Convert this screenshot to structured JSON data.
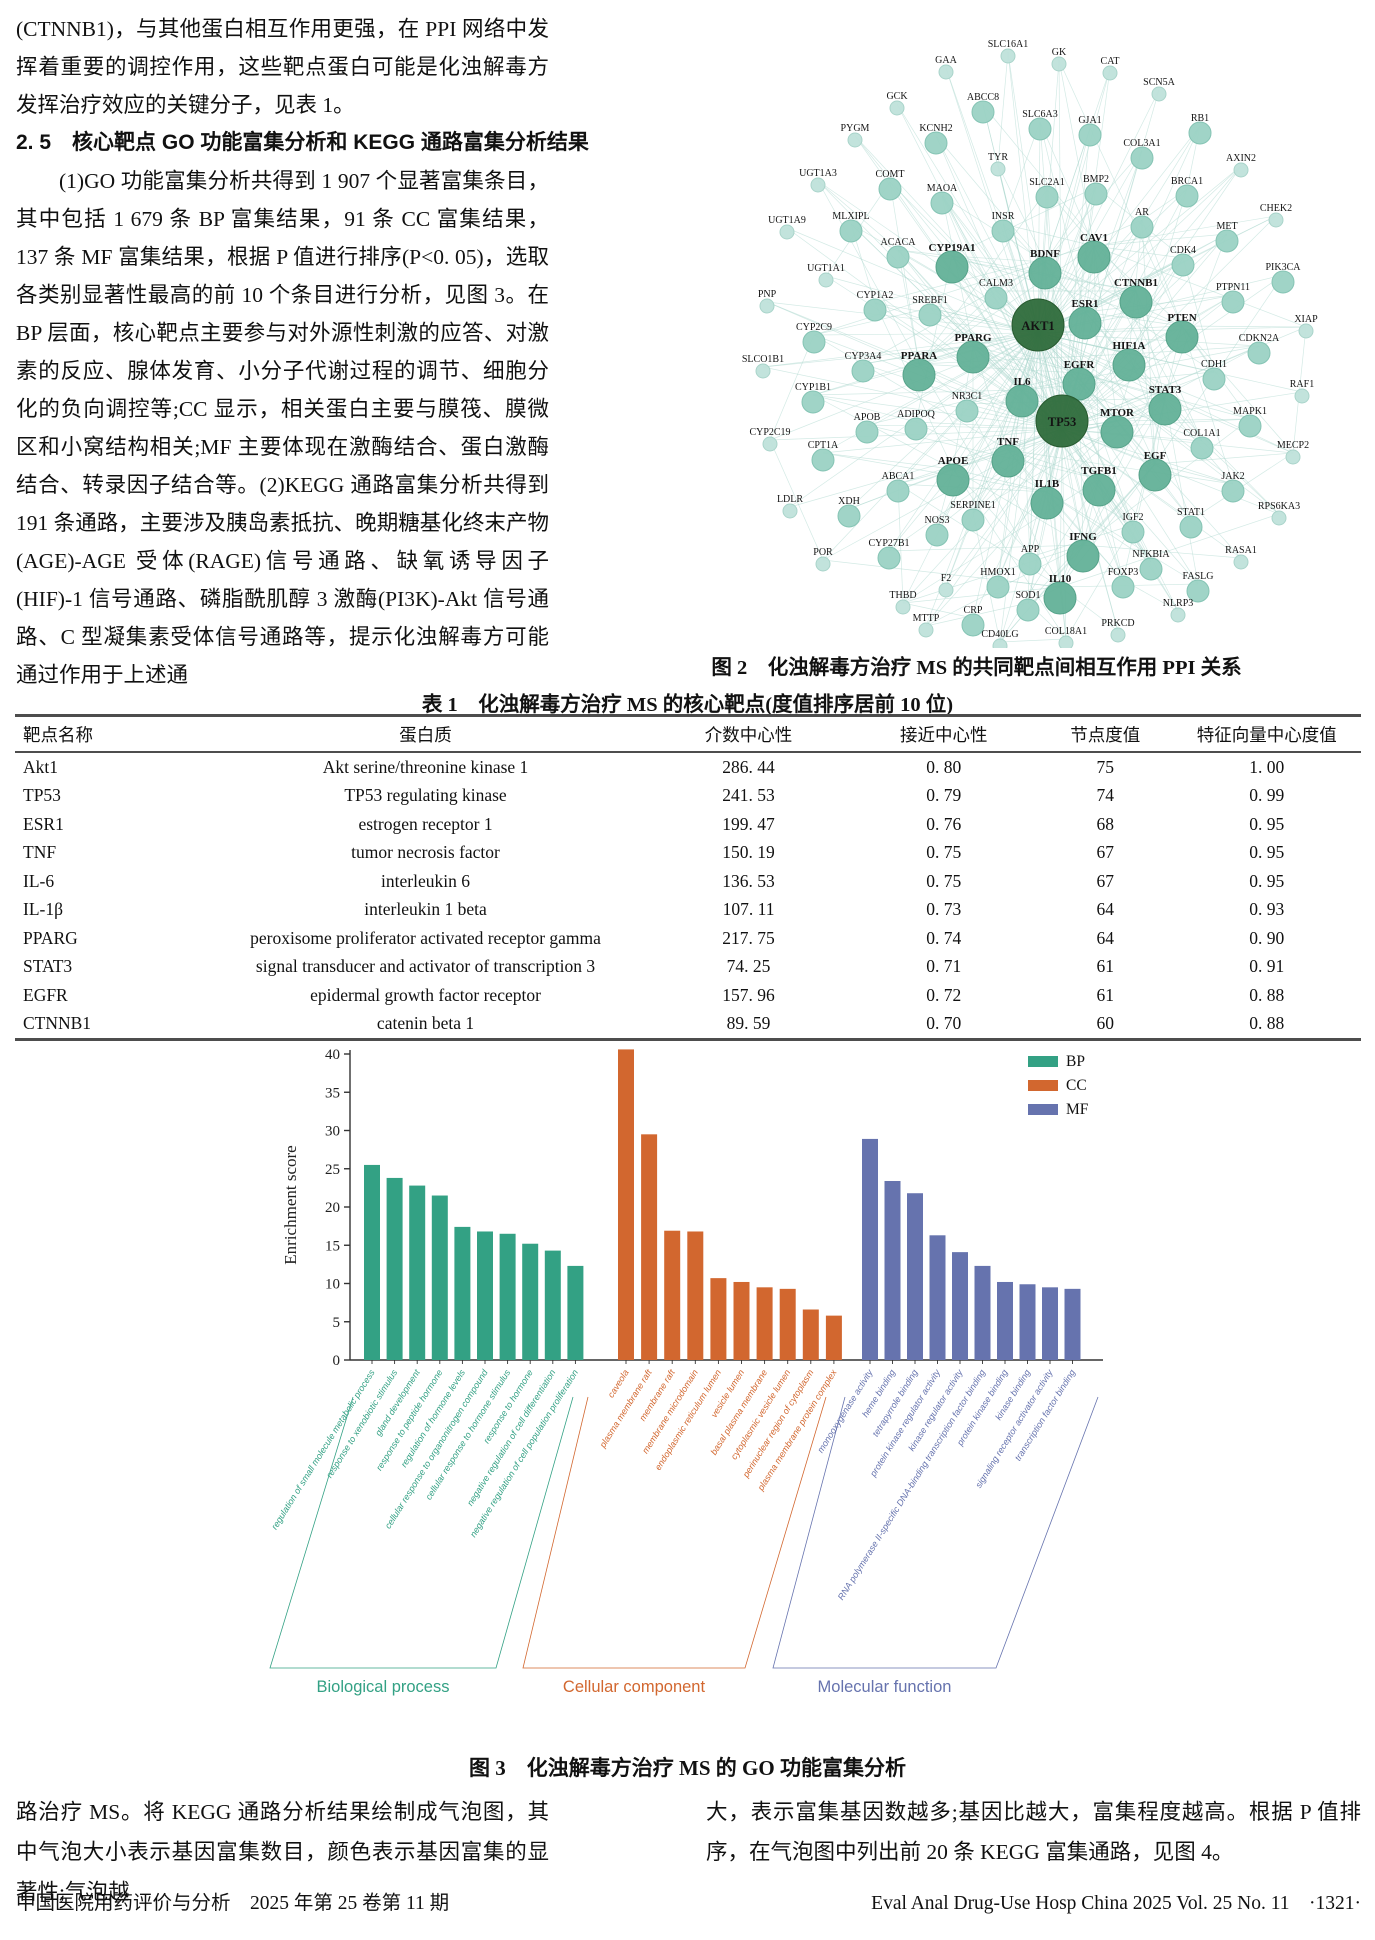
{
  "left_column": {
    "para1": "(CTNNB1)，与其他蛋白相互作用更强，在 PPI 网络中发挥着重要的调控作用，这些靶点蛋白可能是化浊解毒方发挥治疗效应的关键分子，见表 1。",
    "heading": "2. 5　核心靶点 GO 功能富集分析和 KEGG 通路富集分析结果",
    "para2": "(1)GO 功能富集分析共得到 1 907 个显著富集条目，其中包括 1 679 条 BP 富集结果，91 条 CC 富集结果，137 条 MF 富集结果，根据 P 值进行排序(P<0. 05)，选取各类别显著性最高的前 10 个条目进行分析，见图 3。在 BP 层面，核心靶点主要参与对外源性刺激的应答、对激素的反应、腺体发育、小分子代谢过程的调节、细胞分化的负向调控等;CC 显示，相关蛋白主要与膜筏、膜微区和小窝结构相关;MF 主要体现在激酶结合、蛋白激酶结合、转录因子结合等。(2)KEGG 通路富集分析共得到 191 条通路，主要涉及胰岛素抵抗、晚期糖基化终末产物(AGE)-AGE 受体(RAGE)信号通路、缺氧诱导因子(HIF)-1 信号通路、磷脂酰肌醇 3 激酶(PI3K)-Akt 信号通路、C 型凝集素受体信号通路等，提示化浊解毒方可能通过作用于上述通"
  },
  "figure2": {
    "caption": "图 2　化浊解毒方治疗 MS 的共同靶点间相互作用 PPI 关系",
    "network": {
      "hubs": [
        "AKT1",
        "TP53"
      ],
      "colors": {
        "edge": "#aed8cf",
        "tier0": "#bfe2da",
        "tier1": "#9bd2c4",
        "tier2": "#63b198",
        "hub": "#2e6b3b"
      },
      "nodes": [
        [
          "GAA",
          368,
          54,
          0
        ],
        [
          "SLC16A1",
          430,
          38,
          0
        ],
        [
          "GK",
          481,
          46,
          0
        ],
        [
          "CAT",
          532,
          55,
          0
        ],
        [
          "SCN5A",
          581,
          76,
          0
        ],
        [
          "GCK",
          319,
          90,
          0
        ],
        [
          "ABCC8",
          405,
          91,
          1
        ],
        [
          "SLC6A3",
          462,
          108,
          1
        ],
        [
          "RB1",
          622,
          112,
          1
        ],
        [
          "PYGM",
          277,
          122,
          0
        ],
        [
          "KCNH2",
          358,
          122,
          1
        ],
        [
          "GJA1",
          512,
          114,
          1
        ],
        [
          "TYR",
          420,
          151,
          0
        ],
        [
          "COL3A1",
          564,
          137,
          1
        ],
        [
          "AXIN2",
          663,
          152,
          0
        ],
        [
          "UGT1A3",
          240,
          167,
          0
        ],
        [
          "COMT",
          312,
          168,
          1
        ],
        [
          "MAOA",
          364,
          182,
          1
        ],
        [
          "SLC2A1",
          469,
          176,
          1
        ],
        [
          "BMP2",
          518,
          173,
          1
        ],
        [
          "BRCA1",
          609,
          175,
          1
        ],
        [
          "CHEK2",
          698,
          202,
          0
        ],
        [
          "UGT1A9",
          209,
          214,
          0
        ],
        [
          "MLXIPL",
          273,
          210,
          1
        ],
        [
          "INSR",
          425,
          210,
          1
        ],
        [
          "AR",
          564,
          206,
          1
        ],
        [
          "MET",
          649,
          220,
          1
        ],
        [
          "ACACA",
          320,
          236,
          1
        ],
        [
          "CYP19A1",
          374,
          242,
          2
        ],
        [
          "CAV1",
          516,
          232,
          2
        ],
        [
          "BDNF",
          467,
          248,
          2
        ],
        [
          "CDK4",
          605,
          244,
          1
        ],
        [
          "PIK3CA",
          705,
          261,
          1
        ],
        [
          "UGT1A1",
          248,
          262,
          0
        ],
        [
          "CALM3",
          418,
          277,
          1
        ],
        [
          "CTNNB1",
          558,
          277,
          2
        ],
        [
          "PTPN11",
          655,
          281,
          1
        ],
        [
          "PNP",
          189,
          288,
          0
        ],
        [
          "CYP1A2",
          297,
          289,
          1
        ],
        [
          "SREBF1",
          352,
          294,
          1
        ],
        [
          "ESR1",
          507,
          298,
          2
        ],
        [
          "PTEN",
          604,
          312,
          2
        ],
        [
          "XIAP",
          728,
          313,
          0
        ],
        [
          "CYP2C9",
          236,
          321,
          1
        ],
        [
          "AKT1",
          460,
          319,
          3
        ],
        [
          "CDKN2A",
          681,
          332,
          1
        ],
        [
          "PPARG",
          395,
          332,
          2
        ],
        [
          "HIF1A",
          551,
          340,
          2
        ],
        [
          "SLCO1B1",
          185,
          353,
          0
        ],
        [
          "CYP3A4",
          285,
          350,
          1
        ],
        [
          "PPARA",
          341,
          350,
          2
        ],
        [
          "EGFR",
          501,
          359,
          2
        ],
        [
          "CDH1",
          636,
          358,
          1
        ],
        [
          "RAF1",
          724,
          378,
          0
        ],
        [
          "CYP1B1",
          235,
          381,
          1
        ],
        [
          "IL6",
          444,
          376,
          2
        ],
        [
          "STAT3",
          587,
          384,
          2
        ],
        [
          "MAPK1",
          672,
          405,
          1
        ],
        [
          "NR3C1",
          389,
          390,
          1
        ],
        [
          "TP53",
          484,
          415,
          3
        ],
        [
          "MTOR",
          539,
          407,
          2
        ],
        [
          "COL1A1",
          624,
          427,
          1
        ],
        [
          "CYP2C19",
          192,
          426,
          0
        ],
        [
          "APOB",
          289,
          411,
          1
        ],
        [
          "ADIPOQ",
          338,
          408,
          1
        ],
        [
          "TNF",
          430,
          436,
          2
        ],
        [
          "MECP2",
          715,
          439,
          0
        ],
        [
          "CPT1A",
          245,
          439,
          1
        ],
        [
          "APOE",
          375,
          455,
          2
        ],
        [
          "EGF",
          577,
          450,
          2
        ],
        [
          "TGFB1",
          521,
          465,
          2
        ],
        [
          "JAK2",
          655,
          470,
          1
        ],
        [
          "ABCA1",
          320,
          470,
          1
        ],
        [
          "IL1B",
          469,
          478,
          2
        ],
        [
          "LDLR",
          212,
          493,
          0
        ],
        [
          "XDH",
          271,
          495,
          1
        ],
        [
          "SERPINE1",
          395,
          499,
          1
        ],
        [
          "RPS6KA3",
          701,
          500,
          0
        ],
        [
          "NOS3",
          359,
          514,
          1
        ],
        [
          "IGF2",
          555,
          511,
          1
        ],
        [
          "STAT1",
          613,
          506,
          1
        ],
        [
          "POR",
          245,
          546,
          0
        ],
        [
          "CYP27B1",
          311,
          537,
          1
        ],
        [
          "APP",
          452,
          543,
          1
        ],
        [
          "IFNG",
          505,
          531,
          2
        ],
        [
          "NFKBIA",
          573,
          548,
          1
        ],
        [
          "RASA1",
          663,
          544,
          0
        ],
        [
          "HMOX1",
          420,
          566,
          1
        ],
        [
          "F2",
          368,
          572,
          0
        ],
        [
          "IL10",
          482,
          573,
          2
        ],
        [
          "FOXP3",
          545,
          566,
          1
        ],
        [
          "FASLG",
          620,
          570,
          1
        ],
        [
          "THBD",
          325,
          589,
          0
        ],
        [
          "SOD1",
          450,
          589,
          1
        ],
        [
          "CRP",
          395,
          604,
          1
        ],
        [
          "MTTP",
          348,
          612,
          0
        ],
        [
          "NLRP3",
          600,
          597,
          0
        ],
        [
          "PRKCD",
          540,
          617,
          0
        ],
        [
          "CD40LG",
          422,
          628,
          0
        ],
        [
          "COL18A1",
          488,
          625,
          0
        ]
      ]
    }
  },
  "table1": {
    "title": "表 1　化浊解毒方治疗 MS 的核心靶点(度值排序居前 10 位)",
    "headers": [
      "靶点名称",
      "蛋白质",
      "介数中心性",
      "接近中心性",
      "节点度值",
      "特征向量中心度值"
    ],
    "rows": [
      [
        "Akt1",
        "Akt serine/threonine kinase 1",
        "286. 44",
        "0. 80",
        "75",
        "1. 00"
      ],
      [
        "TP53",
        "TP53 regulating kinase",
        "241. 53",
        "0. 79",
        "74",
        "0. 99"
      ],
      [
        "ESR1",
        "estrogen receptor 1",
        "199. 47",
        "0. 76",
        "68",
        "0. 95"
      ],
      [
        "TNF",
        "tumor necrosis factor",
        "150. 19",
        "0. 75",
        "67",
        "0. 95"
      ],
      [
        "IL-6",
        "interleukin 6",
        "136. 53",
        "0. 75",
        "67",
        "0. 95"
      ],
      [
        "IL-1β",
        "interleukin 1 beta",
        "107. 11",
        "0. 73",
        "64",
        "0. 93"
      ],
      [
        "PPARG",
        "peroxisome proliferator activated receptor gamma",
        "217. 75",
        "0. 74",
        "64",
        "0. 90"
      ],
      [
        "STAT3",
        "signal transducer and activator of transcription 3",
        "74. 25",
        "0. 71",
        "61",
        "0. 91"
      ],
      [
        "EGFR",
        "epidermal growth factor receptor",
        "157. 96",
        "0. 72",
        "61",
        "0. 88"
      ],
      [
        "CTNNB1",
        "catenin beta 1",
        "89. 59",
        "0. 70",
        "60",
        "0. 88"
      ]
    ]
  },
  "chart_data": {
    "type": "bar",
    "title": "",
    "ylabel": "Enrichment score",
    "ylim": [
      0,
      40
    ],
    "yticks": [
      0,
      5,
      10,
      15,
      20,
      25,
      30,
      35,
      40
    ],
    "legend_position": "upper right",
    "legend": [
      "BP",
      "CC",
      "MF"
    ],
    "groups": [
      {
        "series": "BP",
        "name": "Biological process",
        "color": "#33a184",
        "categories": [
          "regulation of small molecule metabolic process",
          "response to xenobiotic stimulus",
          "gland development",
          "response to peptide hormone",
          "regulation of hormone levels",
          "cellular response to organonitrogen compound",
          "cellular response to hormone stimulus",
          "response to hormone",
          "negative regulation of cell differentiation",
          "negative regulation of cell population proliferation"
        ],
        "values": [
          25.5,
          23.8,
          22.8,
          21.5,
          17.4,
          16.8,
          16.5,
          15.2,
          14.3,
          12.3
        ]
      },
      {
        "series": "CC",
        "name": "Cellular component",
        "color": "#d2672f",
        "categories": [
          "caveola",
          "plasma membrane raft",
          "membrane raft",
          "membrane microdomain",
          "endoplasmic reticulum lumen",
          "vesicle lumen",
          "basal plasma membrane",
          "cytoplasmic vesicle lumen",
          "perinuclear region of cytoplasm",
          "plasma membrane protein complex"
        ],
        "values": [
          40.6,
          29.5,
          16.9,
          16.8,
          10.7,
          10.2,
          9.5,
          9.3,
          6.6,
          5.8
        ]
      },
      {
        "series": "MF",
        "name": "Molecular function",
        "color": "#6673ae",
        "categories": [
          "monooxygenase activity",
          "heme binding",
          "tetrapyrrole binding",
          "protein kinase regulator activity",
          "kinase regulator activity",
          "RNA polymerase II-specific DNA-binding transcription factor binding",
          "protein kinase binding",
          "kinase binding",
          "signaling receptor activator activity",
          "transcription factor binding"
        ],
        "values": [
          28.9,
          23.4,
          21.8,
          16.3,
          14.1,
          12.3,
          10.2,
          9.9,
          9.5,
          9.3
        ]
      }
    ]
  },
  "figure3": {
    "caption": "图 3　化浊解毒方治疗 MS 的 GO 功能富集分析"
  },
  "bottom": {
    "left_text": "路治疗 MS。将 KEGG 通路分析结果绘制成气泡图，其中气泡大小表示基因富集数目，颜色表示基因富集的显著性;气泡越",
    "right_text": "大，表示富集基因数越多;基因比越大，富集程度越高。根据 P 值排序，在气泡图中列出前 20 条 KEGG 富集通路，见图 4。"
  },
  "footer": {
    "left": "中国医院用药评价与分析　2025 年第 25 卷第 11 期",
    "right": "Eval Anal Drug-Use Hosp China 2025 Vol. 25 No. 11　·1321·"
  }
}
